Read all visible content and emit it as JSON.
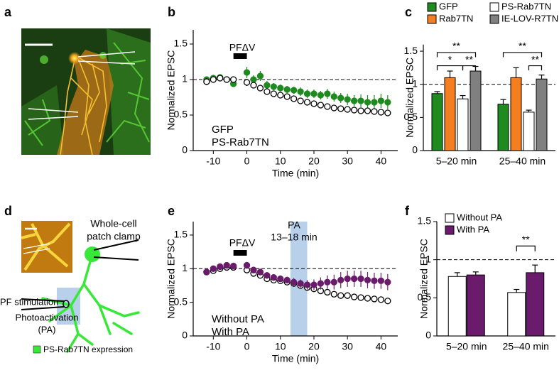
{
  "panel_labels": [
    "a",
    "b",
    "c",
    "d",
    "e",
    "f"
  ],
  "diagram": {
    "clamp_label": [
      "Whole-cell",
      "patch clamp"
    ],
    "pf_label": "PF stimulation",
    "pa_label": [
      "Photoactivation",
      "(PA)"
    ],
    "legend": "PS-Rab7TN expression"
  },
  "chart_data": [
    {
      "type": "scatter",
      "xlabel": "Time (min)",
      "ylabel": "Normalized EPSC",
      "x": [
        -12,
        -10,
        -8,
        -6,
        -4,
        0,
        2,
        4,
        6,
        8,
        10,
        12,
        14,
        16,
        18,
        20,
        22,
        24,
        26,
        28,
        30,
        32,
        34,
        36,
        38,
        40,
        42
      ],
      "xlim": [
        -16,
        45
      ],
      "xticks": [
        -10,
        0,
        10,
        20,
        30,
        40
      ],
      "ylim": [
        0,
        1.7
      ],
      "yticks": [
        0,
        0.5,
        1,
        1.5
      ],
      "hline": 1,
      "stim_bar": [
        -4,
        0
      ],
      "annotations": [
        "PFΔV"
      ],
      "series": [
        {
          "name": "GFP",
          "color": "#1f8a1f",
          "marker_fill": "#1f8a1f",
          "values": [
            1.0,
            1.02,
            1.03,
            1.0,
            0.94,
            1.1,
            1.0,
            1.05,
            0.92,
            0.9,
            0.88,
            0.86,
            0.85,
            0.83,
            0.8,
            0.8,
            0.78,
            0.8,
            0.76,
            0.74,
            0.72,
            0.7,
            0.7,
            0.68,
            0.68,
            0.7,
            0.68
          ],
          "errors": [
            0.03,
            0.03,
            0.03,
            0.03,
            0.03,
            0.08,
            0.06,
            0.07,
            0.06,
            0.05,
            0.05,
            0.05,
            0.05,
            0.06,
            0.06,
            0.06,
            0.06,
            0.07,
            0.07,
            0.07,
            0.08,
            0.08,
            0.09,
            0.1,
            0.1,
            0.1,
            0.1
          ]
        },
        {
          "name": "PS-Rab7TN",
          "color": "#000000",
          "marker_fill": "#ffffff",
          "values": [
            0.97,
            1.0,
            1.02,
            1.0,
            1.0,
            0.96,
            0.92,
            0.88,
            0.83,
            0.8,
            0.78,
            0.76,
            0.73,
            0.7,
            0.68,
            0.66,
            0.64,
            0.62,
            0.6,
            0.59,
            0.58,
            0.57,
            0.56,
            0.56,
            0.55,
            0.54,
            0.53
          ],
          "errors": [
            0.05,
            0.03,
            0.03,
            0.03,
            0.03,
            0.05,
            0.04,
            0.04,
            0.04,
            0.04,
            0.03,
            0.03,
            0.03,
            0.03,
            0.03,
            0.03,
            0.03,
            0.03,
            0.03,
            0.03,
            0.03,
            0.03,
            0.03,
            0.03,
            0.03,
            0.03,
            0.03
          ]
        }
      ]
    },
    {
      "type": "bar",
      "ylabel": "Normalized EPSC",
      "categories": [
        "5–20 min",
        "25–40 min"
      ],
      "ylim": [
        0,
        1.6
      ],
      "yticks": [
        0,
        0.5,
        1,
        1.5
      ],
      "hline": 1,
      "annotations": [
        "**",
        "*",
        "**",
        "**",
        "**"
      ],
      "series": [
        {
          "name": "GFP",
          "color": "#1f8a1f",
          "values": [
            0.86,
            0.7
          ],
          "errors": [
            0.03,
            0.07
          ]
        },
        {
          "name": "Rab7TN",
          "color": "#f57f20",
          "values": [
            1.1,
            1.1
          ],
          "errors": [
            0.1,
            0.15
          ]
        },
        {
          "name": "PS-Rab7TN",
          "color": "#ffffff",
          "values": [
            0.78,
            0.58
          ],
          "errors": [
            0.05,
            0.03
          ]
        },
        {
          "name": "IE-LOV-R7TN",
          "color": "#808080",
          "values": [
            1.2,
            1.08
          ],
          "errors": [
            0.07,
            0.06
          ]
        }
      ]
    },
    {
      "type": "scatter",
      "xlabel": "Time (min)",
      "ylabel": "Normalized EPSC",
      "x": [
        -12,
        -10,
        -8,
        -6,
        -4,
        0,
        2,
        4,
        6,
        8,
        10,
        12,
        14,
        16,
        18,
        20,
        22,
        24,
        26,
        28,
        30,
        32,
        34,
        36,
        38,
        40,
        42
      ],
      "xlim": [
        -16,
        45
      ],
      "xticks": [
        -10,
        0,
        10,
        20,
        30,
        40
      ],
      "ylim": [
        0,
        1.7
      ],
      "yticks": [
        0,
        0.5,
        1,
        1.5
      ],
      "hline": 1,
      "stim_bar": [
        -4,
        0
      ],
      "shade": [
        13,
        18
      ],
      "annotations": [
        "PFΔV",
        "PA",
        "13–18 min"
      ],
      "series": [
        {
          "name": "Without PA",
          "color": "#000000",
          "marker_fill": "#ffffff",
          "values": [
            0.95,
            0.97,
            1.0,
            1.02,
            1.02,
            0.98,
            0.93,
            0.9,
            0.85,
            0.83,
            0.82,
            0.8,
            0.78,
            0.75,
            0.72,
            0.7,
            0.67,
            0.65,
            0.62,
            0.6,
            0.6,
            0.58,
            0.57,
            0.56,
            0.55,
            0.54,
            0.52
          ],
          "errors": [
            0.04,
            0.03,
            0.03,
            0.03,
            0.03,
            0.04,
            0.04,
            0.04,
            0.04,
            0.03,
            0.03,
            0.03,
            0.03,
            0.03,
            0.03,
            0.03,
            0.03,
            0.03,
            0.03,
            0.03,
            0.03,
            0.03,
            0.03,
            0.03,
            0.03,
            0.03,
            0.03
          ]
        },
        {
          "name": "With PA",
          "color": "#6b1b6b",
          "marker_fill": "#6b1b6b",
          "values": [
            0.95,
            1.0,
            1.03,
            1.05,
            1.04,
            1.05,
            0.98,
            0.95,
            0.9,
            0.87,
            0.85,
            0.83,
            0.8,
            0.78,
            0.76,
            0.76,
            0.78,
            0.8,
            0.8,
            0.83,
            0.85,
            0.85,
            0.85,
            0.83,
            0.82,
            0.82,
            0.8
          ],
          "errors": [
            0.03,
            0.03,
            0.03,
            0.03,
            0.03,
            0.05,
            0.05,
            0.05,
            0.05,
            0.05,
            0.05,
            0.05,
            0.06,
            0.06,
            0.07,
            0.08,
            0.09,
            0.1,
            0.11,
            0.12,
            0.12,
            0.12,
            0.12,
            0.12,
            0.12,
            0.12,
            0.12
          ]
        }
      ]
    },
    {
      "type": "bar",
      "ylabel": "Normalized EPSC",
      "categories": [
        "5–20 min",
        "25–40 min"
      ],
      "ylim": [
        0,
        1.5
      ],
      "yticks": [
        0,
        0.5,
        1,
        1.5
      ],
      "hline": 1,
      "annotations": [
        "**"
      ],
      "series": [
        {
          "name": "Without  PA",
          "color": "#ffffff",
          "values": [
            0.78,
            0.57
          ],
          "errors": [
            0.05,
            0.04
          ]
        },
        {
          "name": "With PA",
          "color": "#6b1b6b",
          "values": [
            0.8,
            0.83
          ],
          "errors": [
            0.04,
            0.1
          ]
        }
      ]
    }
  ]
}
